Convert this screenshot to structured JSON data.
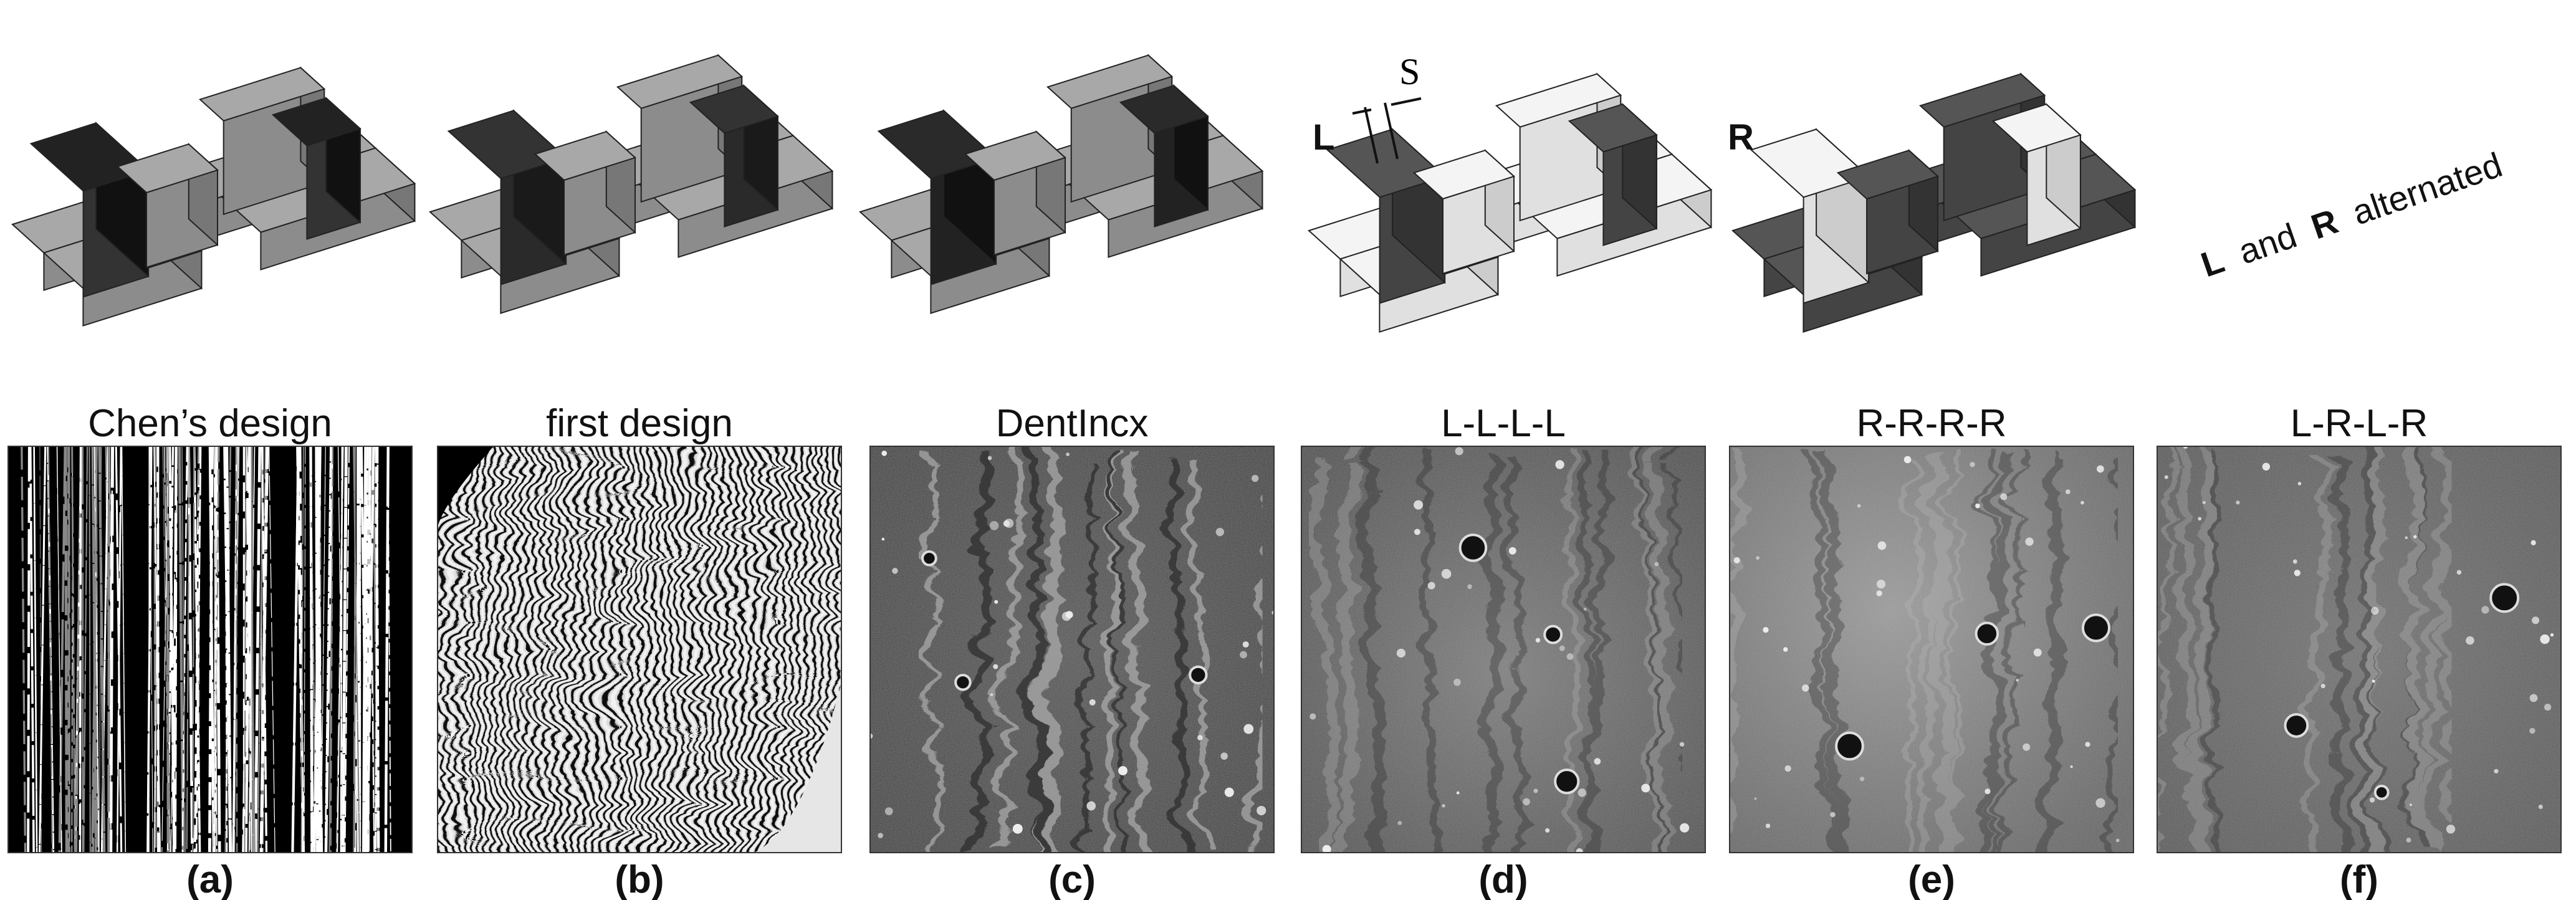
{
  "panels": [
    {
      "caption": "Chen’s design",
      "label": "(a)"
    },
    {
      "caption": "first design",
      "label": "(b)"
    },
    {
      "caption": "DentIncx",
      "label": "(c)"
    },
    {
      "caption": "L-L-L-L",
      "label": "(d)"
    },
    {
      "caption": "R-R-R-R",
      "label": "(e)"
    },
    {
      "caption": "L-R-L-R",
      "label": "(f)"
    }
  ],
  "annotations": {
    "left": "L",
    "spacing": "S",
    "right": "R",
    "alternated": [
      "L",
      "and",
      "R",
      "alternated"
    ]
  }
}
